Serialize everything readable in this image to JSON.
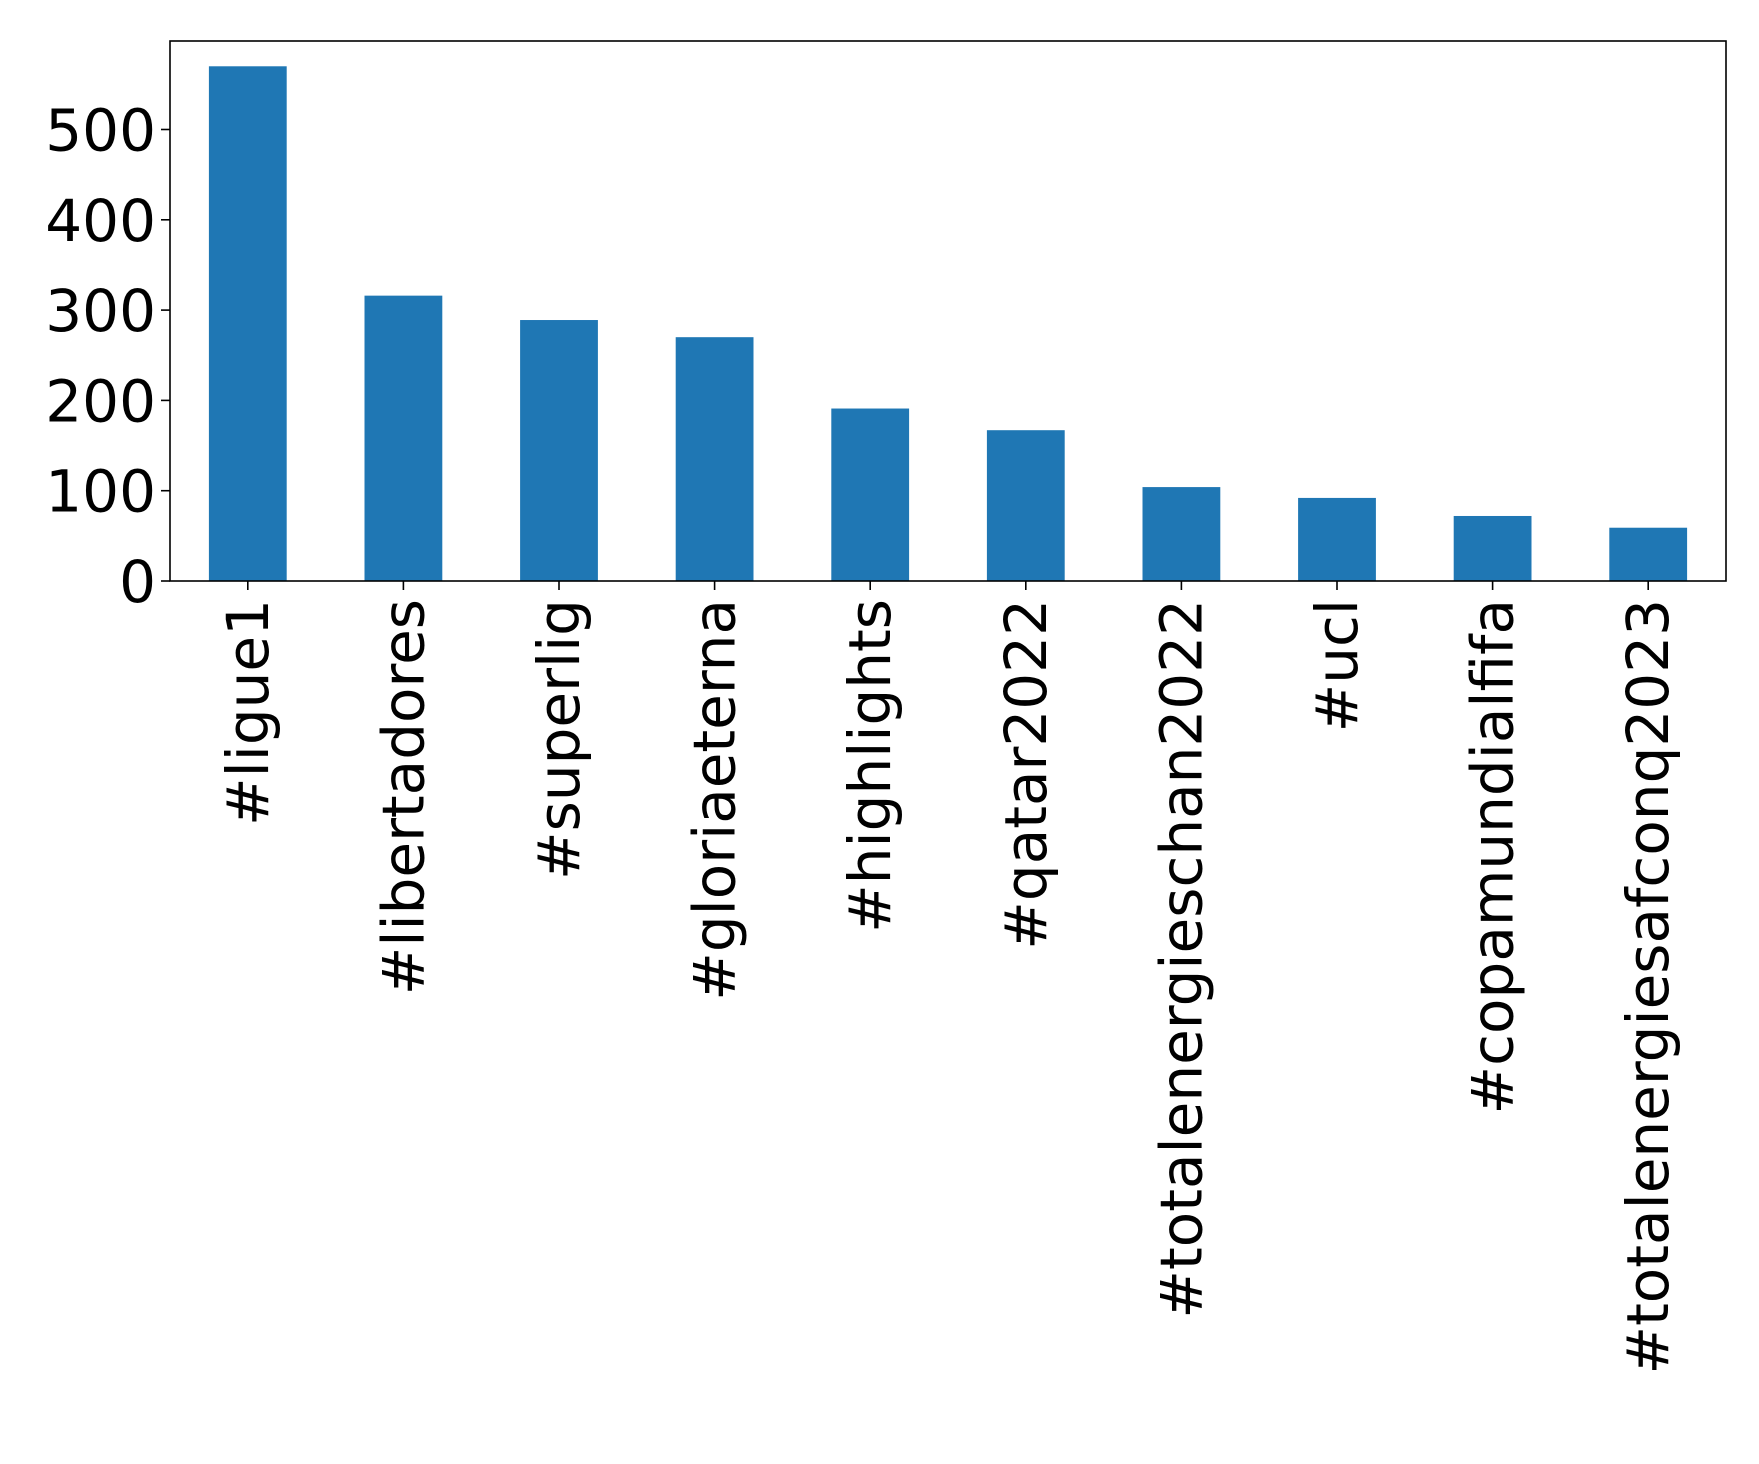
{
  "chart_data": {
    "type": "bar",
    "categories": [
      "#ligue1",
      "#libertadores",
      "#superlig",
      "#gloriaeterna",
      "#highlights",
      "#qatar2022",
      "#totalenergieschan2022",
      "#ucl",
      "#copamundialfifa",
      "#totalenergiesafconq2023"
    ],
    "values": [
      570,
      316,
      289,
      270,
      191,
      167,
      104,
      92,
      72,
      59
    ],
    "title": "",
    "xlabel": "",
    "ylabel": "",
    "ylim": [
      0,
      598
    ],
    "yticks": [
      "0",
      "100",
      "200",
      "300",
      "400",
      "500"
    ],
    "grid": false,
    "legend": "none",
    "bar_color": "#1f77b4"
  }
}
